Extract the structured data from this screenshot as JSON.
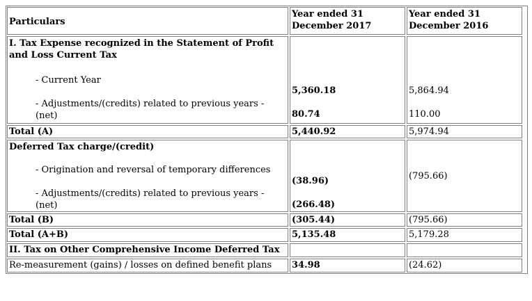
{
  "header": {
    "particulars": "Particulars",
    "year2017": "Year ended 31 December 2017",
    "year2016": "Year ended 31 December 2016"
  },
  "section1": {
    "title": "I. Tax Expense recognized in the Statement of Profit and Loss Current Tax",
    "items": [
      {
        "label": "- Current Year",
        "v2017": "5,360.18",
        "v2016": "5,864.94"
      },
      {
        "label": "- Adjustments/(credits) related to previous years - (net)",
        "v2017": "80.74",
        "v2016": "110.00"
      }
    ],
    "total": {
      "label": "Total (A)",
      "v2017": "5,440.92",
      "v2016": "5,974.94"
    }
  },
  "section2": {
    "title": "Deferred Tax charge/(credit)",
    "items": [
      {
        "label": "- Origination and reversal of temporary differences",
        "v2017": "(38.96)",
        "v2016": "(795.66)"
      },
      {
        "label": "- Adjustments/(credits) related to previous years - (net)",
        "v2017": "(266.48)",
        "v2016": ""
      }
    ],
    "total": {
      "label": "Total (B)",
      "v2017": "(305.44)",
      "v2016": "(795.66)"
    }
  },
  "total_ab": {
    "label": "Total (A+B)",
    "v2017": "5,135.48",
    "v2016": "5,179.28"
  },
  "section3": {
    "title": "II. Tax on Other Comprehensive Income Deferred Tax",
    "item": {
      "label": "Re-measurement (gains) / losses on defined benefit plans",
      "v2017": "34.98",
      "v2016": "(24.62)"
    }
  }
}
